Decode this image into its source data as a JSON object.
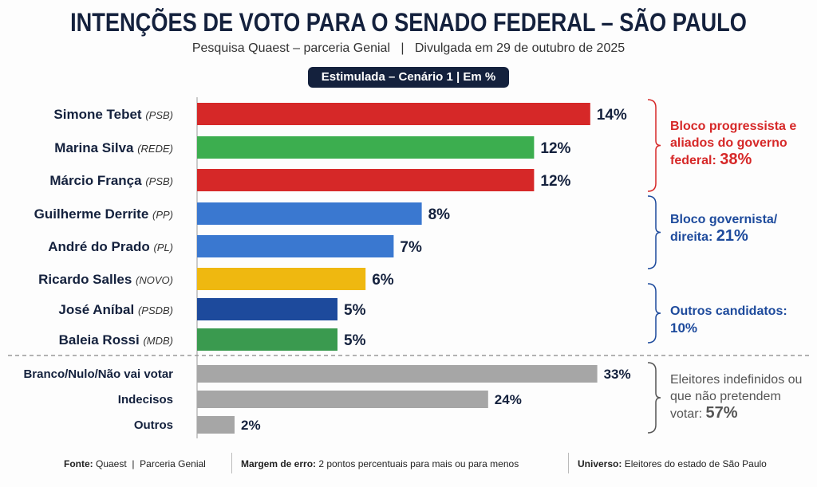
{
  "header": {
    "title": "INTENÇÕES DE VOTO PARA O SENADO FEDERAL – SÃO PAULO",
    "subtitle": "Pesquisa Quaest – parceria Genial   |   Divulgada em 29 de outubro de 2025",
    "badge": "Estimulada – Cenário 1 | Em %"
  },
  "chart_data": {
    "type": "bar",
    "orientation": "horizontal",
    "candidates": [
      {
        "name": "Simone Tebet",
        "party": "(PSB)",
        "value": 14,
        "label": "14%",
        "color": "#d62828"
      },
      {
        "name": "Marina Silva",
        "party": "(REDE)",
        "value": 12,
        "label": "12%",
        "color": "#3cae4f"
      },
      {
        "name": "Márcio França",
        "party": "(PSB)",
        "value": 12,
        "label": "12%",
        "color": "#d62828"
      },
      {
        "name": "Guilherme Derrite",
        "party": "(PP)",
        "value": 8,
        "label": "8%",
        "color": "#3a78d0"
      },
      {
        "name": "André do Prado",
        "party": "(PL)",
        "value": 7,
        "label": "7%",
        "color": "#3a78d0"
      },
      {
        "name": "Ricardo Salles",
        "party": "(NOVO)",
        "value": 6,
        "label": "6%",
        "color": "#efb810"
      },
      {
        "name": "José Aníbal",
        "party": "(PSDB)",
        "value": 5,
        "label": "5%",
        "color": "#1d4a9c"
      },
      {
        "name": "Baleia Rossi",
        "party": "(MDB)",
        "value": 5,
        "label": "5%",
        "color": "#3a9a4f"
      }
    ],
    "others": [
      {
        "name": "Branco/Nulo/Não vai votar",
        "value": 33,
        "label": "33%",
        "color": "#a6a6a6"
      },
      {
        "name": "Indecisos",
        "value": 24,
        "label": "24%",
        "color": "#a6a6a6"
      },
      {
        "name": "Outros",
        "value": 2,
        "label": "2%",
        "color": "#a6a6a6"
      }
    ],
    "groups": [
      {
        "text": "Bloco progressista e aliados do governo federal:",
        "total": "38%",
        "color": "#d62828"
      },
      {
        "text": "Bloco governista/ direita:",
        "total": "21%",
        "color": "#1d4a9c"
      },
      {
        "text": "Outros candidatos:",
        "total": "10%",
        "color": "#1d4a9c"
      },
      {
        "text": "Eleitores indefinidos ou que não pretendem votar:",
        "total": "57%",
        "color": "#555555"
      }
    ]
  },
  "footer": {
    "fonte_label": "Fonte:",
    "fonte": "Quaest  |  Parceria Genial",
    "margem_label": "Margem de erro:",
    "margem": "2 pontos percentuais para mais ou para menos",
    "universo_label": "Universo:",
    "universo": "Eleitores do estado de São Paulo"
  }
}
